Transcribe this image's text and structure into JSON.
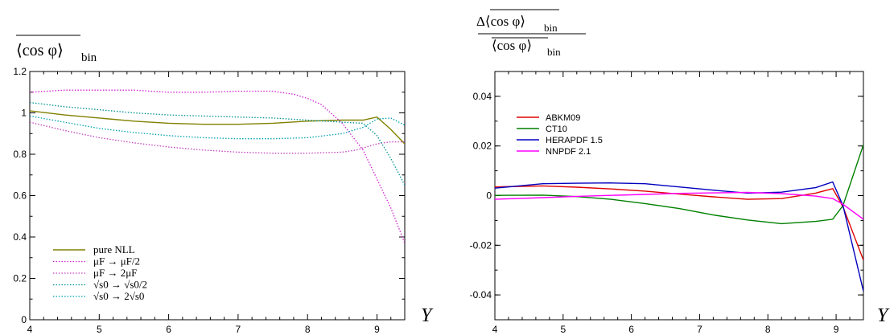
{
  "chart_data": [
    {
      "type": "line",
      "ylabel": "⟨cos φ⟩ bin (overlined)",
      "ylabel_parts": {
        "main": "⟨cos φ⟩",
        "sub": "bin"
      },
      "xlabel": "Y",
      "xlim": [
        4,
        9.4
      ],
      "ylim": [
        0,
        1.2
      ],
      "xticks": [
        "4",
        "5",
        "6",
        "7",
        "8",
        "9"
      ],
      "yticks": [
        "0",
        "0.2",
        "0.4",
        "0.6",
        "0.8",
        "1",
        "1.2"
      ],
      "legend_position": "bottom-left",
      "series": [
        {
          "name": "pure NLL",
          "color": "#808000",
          "dash": "solid",
          "x": [
            4,
            4.5,
            5,
            5.5,
            6,
            6.5,
            7,
            7.5,
            8,
            8.5,
            8.8,
            9,
            9.2,
            9.4
          ],
          "y": [
            1.01,
            0.99,
            0.975,
            0.96,
            0.95,
            0.945,
            0.945,
            0.95,
            0.96,
            0.965,
            0.965,
            0.98,
            0.92,
            0.85
          ]
        },
        {
          "name": "μF → μF/2",
          "color": "#d020d0",
          "dash": "dotted",
          "x": [
            4,
            4.5,
            5,
            5.5,
            6,
            6.5,
            7,
            7.5,
            7.8,
            8,
            8.2,
            8.5,
            8.8,
            9,
            9.2,
            9.4
          ],
          "y": [
            1.1,
            1.11,
            1.11,
            1.11,
            1.1,
            1.1,
            1.105,
            1.105,
            1.09,
            1.07,
            1.04,
            0.95,
            0.82,
            0.68,
            0.54,
            0.37
          ]
        },
        {
          "name": "μF → 2μF",
          "color": "#c040c0",
          "dash": "dotted",
          "x": [
            4,
            4.5,
            5,
            5.5,
            6,
            6.5,
            7,
            7.5,
            8,
            8.5,
            8.7,
            9,
            9.2,
            9.4
          ],
          "y": [
            0.955,
            0.915,
            0.88,
            0.855,
            0.835,
            0.82,
            0.81,
            0.805,
            0.805,
            0.81,
            0.82,
            0.85,
            0.86,
            0.86
          ]
        },
        {
          "name": "√s0 → √s0/2",
          "color": "#009090",
          "dash": "dotted",
          "x": [
            4,
            4.5,
            5,
            5.5,
            6,
            6.5,
            7,
            7.5,
            8,
            8.5,
            8.8,
            9,
            9.2,
            9.4
          ],
          "y": [
            1.05,
            1.03,
            1.015,
            1.0,
            0.99,
            0.985,
            0.98,
            0.975,
            0.965,
            0.955,
            0.95,
            0.89,
            0.78,
            0.65
          ]
        },
        {
          "name": "√s0 → 2√s0",
          "color": "#00a0b0",
          "dash": "dotted",
          "x": [
            4,
            4.5,
            5,
            5.5,
            6,
            6.5,
            7,
            7.5,
            8,
            8.5,
            8.8,
            9,
            9.2,
            9.4
          ],
          "y": [
            0.985,
            0.955,
            0.925,
            0.905,
            0.89,
            0.88,
            0.875,
            0.875,
            0.88,
            0.9,
            0.93,
            0.97,
            0.975,
            0.94
          ]
        }
      ]
    },
    {
      "type": "line",
      "ylabel": "Δ⟨cos φ⟩bin / ⟨cos φ⟩bin",
      "ylabel_parts": {
        "num": "Δ⟨cos φ⟩",
        "den": "⟨cos φ⟩",
        "sub": "bin"
      },
      "xlabel": "Y",
      "xlim": [
        4,
        9.4
      ],
      "ylim": [
        -0.05,
        0.05
      ],
      "xticks": [
        "4",
        "5",
        "6",
        "7",
        "8",
        "9"
      ],
      "yticks": [
        "-0.04",
        "-0.02",
        "0",
        "0.02",
        "0.04"
      ],
      "legend_position": "top-left",
      "series": [
        {
          "name": "ABKM09",
          "color": "#e00000",
          "dash": "solid",
          "x": [
            4,
            4.7,
            5.2,
            5.7,
            6.2,
            6.7,
            7.2,
            7.7,
            8.2,
            8.7,
            8.95,
            9.1,
            9.4
          ],
          "y": [
            0.0035,
            0.0039,
            0.0034,
            0.0027,
            0.0018,
            0.0006,
            -0.0005,
            -0.0015,
            -0.0012,
            0.001,
            0.0028,
            -0.0045,
            -0.026
          ]
        },
        {
          "name": "CT10",
          "color": "#008000",
          "dash": "solid",
          "x": [
            4,
            4.7,
            5.2,
            5.7,
            6.2,
            6.7,
            7.2,
            7.7,
            8.2,
            8.7,
            8.95,
            9.1,
            9.4
          ],
          "y": [
            0.0001,
            0.0002,
            -0.0004,
            -0.0015,
            -0.0032,
            -0.0052,
            -0.0078,
            -0.0098,
            -0.0113,
            -0.0104,
            -0.0095,
            -0.004,
            0.0205
          ]
        },
        {
          "name": "HERAPDF 1.5",
          "color": "#0000c0",
          "dash": "solid",
          "x": [
            4,
            4.7,
            5.2,
            5.7,
            6.2,
            6.7,
            7.2,
            7.7,
            8.2,
            8.7,
            8.95,
            9.1,
            9.4
          ],
          "y": [
            0.003,
            0.0048,
            0.005,
            0.0051,
            0.0048,
            0.0035,
            0.0022,
            0.001,
            0.0014,
            0.0032,
            0.0055,
            -0.004,
            -0.0385
          ]
        },
        {
          "name": "NNPDF 2.1",
          "color": "#ff00ff",
          "dash": "solid",
          "x": [
            4,
            4.7,
            5.2,
            5.7,
            6.2,
            6.7,
            7.2,
            7.7,
            8.2,
            8.7,
            8.95,
            9.1,
            9.4
          ],
          "y": [
            -0.0015,
            -0.0008,
            -0.0003,
            0.0001,
            0.0005,
            0.0009,
            0.0011,
            0.0013,
            0.0008,
            -0.0002,
            -0.0012,
            -0.0035,
            -0.0095
          ]
        }
      ]
    }
  ]
}
